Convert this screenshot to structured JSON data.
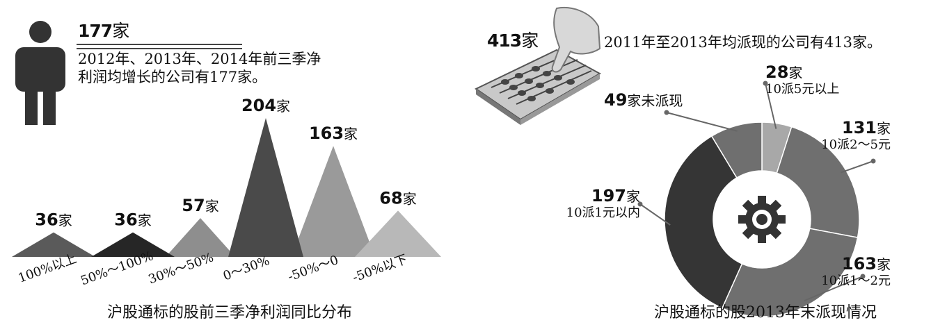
{
  "left_panel": {
    "headline_number": "177",
    "headline_unit": "家",
    "headline_text_line1": "2012年、2013年、2014年前三季净",
    "headline_text_line2": "利润均增长的公司有177家。",
    "caption": "沪股通标的股前三季净利润同比分布"
  },
  "right_panel": {
    "headline_number": "413",
    "headline_unit": "家",
    "headline_text": "2011年至2013年均派现的公司有413家。",
    "caption": "沪股通标的股2013年末派现情况"
  },
  "colors": {
    "bar_100_plus": "#5a5a5a",
    "bar_50_100": "#262626",
    "bar_30_50": "#8e8e8e",
    "bar_0_30": "#4a4a4a",
    "bar_minus50_0": "#9a9a9a",
    "bar_minus50_below": "#b8b8b8",
    "donut_dark": "#353535",
    "donut_mid": "#6f6f6f",
    "donut_light": "#a8a8a8",
    "gear": "#333333"
  },
  "chart_data": [
    {
      "type": "bar",
      "categories": [
        "100%以上",
        "50%～100%",
        "30%～50%",
        "0～30%",
        "-50%～0",
        "-50%以下"
      ],
      "values": [
        36,
        36,
        57,
        204,
        163,
        68
      ],
      "value_labels": [
        {
          "number": "36",
          "unit": "家"
        },
        {
          "number": "36",
          "unit": "家"
        },
        {
          "number": "57",
          "unit": "家"
        },
        {
          "number": "204",
          "unit": "家"
        },
        {
          "number": "163",
          "unit": "家"
        },
        {
          "number": "68",
          "unit": "家"
        }
      ],
      "title": "沪股通标的股前三季净利润同比分布",
      "xlabel": "",
      "ylabel": "",
      "ylim": [
        0,
        204
      ],
      "grid": false,
      "legend": "none"
    },
    {
      "type": "pie",
      "categories": [
        "10派5元以上",
        "10派2～5元",
        "10派1～2元",
        "10派1元以内",
        "未派现"
      ],
      "values": [
        28,
        131,
        163,
        197,
        49
      ],
      "value_labels": [
        {
          "number": "28",
          "unit": "家",
          "desc": "10派5元以上"
        },
        {
          "number": "131",
          "unit": "家",
          "desc": "10派2～5元"
        },
        {
          "number": "163",
          "unit": "家",
          "desc": "10派1～2元"
        },
        {
          "number": "197",
          "unit": "家",
          "desc": "10派1元以内"
        },
        {
          "number": "49",
          "unit": "家未派现",
          "desc": ""
        }
      ],
      "title": "沪股通标的股2013年末派现情况",
      "donut": true,
      "legend": "callouts"
    }
  ]
}
